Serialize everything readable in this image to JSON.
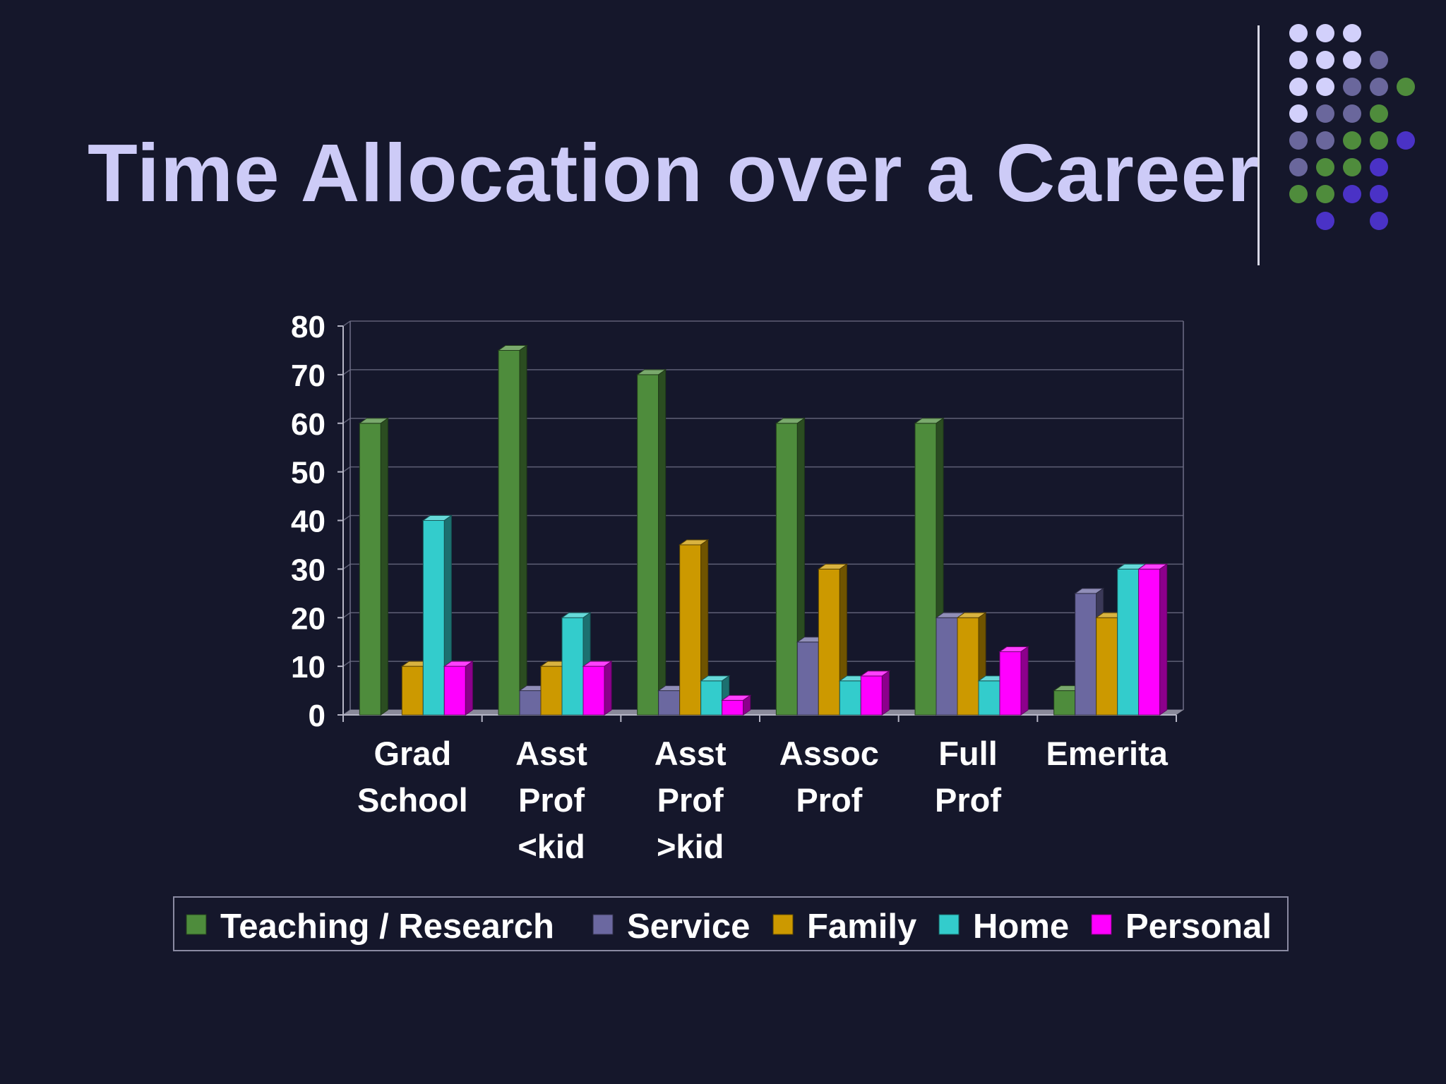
{
  "slide": {
    "title": "Time Allocation over a Career"
  },
  "decoration": {
    "dot_colors": {
      "light": "#d2d0fb",
      "muted": "#6a679c",
      "green": "#4f8c3c",
      "blue": "#4a32c6"
    },
    "dot_pattern": [
      "LLL..",
      "LLLM.",
      "LLMMG",
      "LMMG.",
      "MMGGB",
      "MGGB.",
      "GGBB.",
      ".B.B."
    ]
  },
  "chart_data": {
    "type": "bar",
    "categories": [
      [
        "Grad",
        "School"
      ],
      [
        "Asst",
        "Prof",
        "<kid"
      ],
      [
        "Asst",
        "Prof",
        ">kid"
      ],
      [
        "Assoc",
        "Prof"
      ],
      [
        "Full",
        "Prof"
      ],
      [
        "Emerita"
      ]
    ],
    "series": [
      {
        "name": "Teaching / Research",
        "color": "#4e8c3c",
        "values": [
          60,
          75,
          70,
          60,
          60,
          5
        ]
      },
      {
        "name": "Service",
        "color": "#6b68a0",
        "values": [
          0,
          5,
          5,
          15,
          20,
          25
        ]
      },
      {
        "name": "Family",
        "color": "#cc9900",
        "values": [
          10,
          10,
          35,
          30,
          20,
          20
        ]
      },
      {
        "name": "Home",
        "color": "#33cccc",
        "values": [
          40,
          20,
          7,
          7,
          7,
          30
        ]
      },
      {
        "name": "Personal",
        "color": "#ff00ff",
        "values": [
          10,
          10,
          3,
          8,
          13,
          30
        ]
      }
    ],
    "ylim": [
      0,
      80
    ],
    "yticks": [
      0,
      10,
      20,
      30,
      40,
      50,
      60,
      70,
      80
    ],
    "grid": true,
    "legend": "bottom",
    "title": "",
    "xlabel": "",
    "ylabel": ""
  }
}
